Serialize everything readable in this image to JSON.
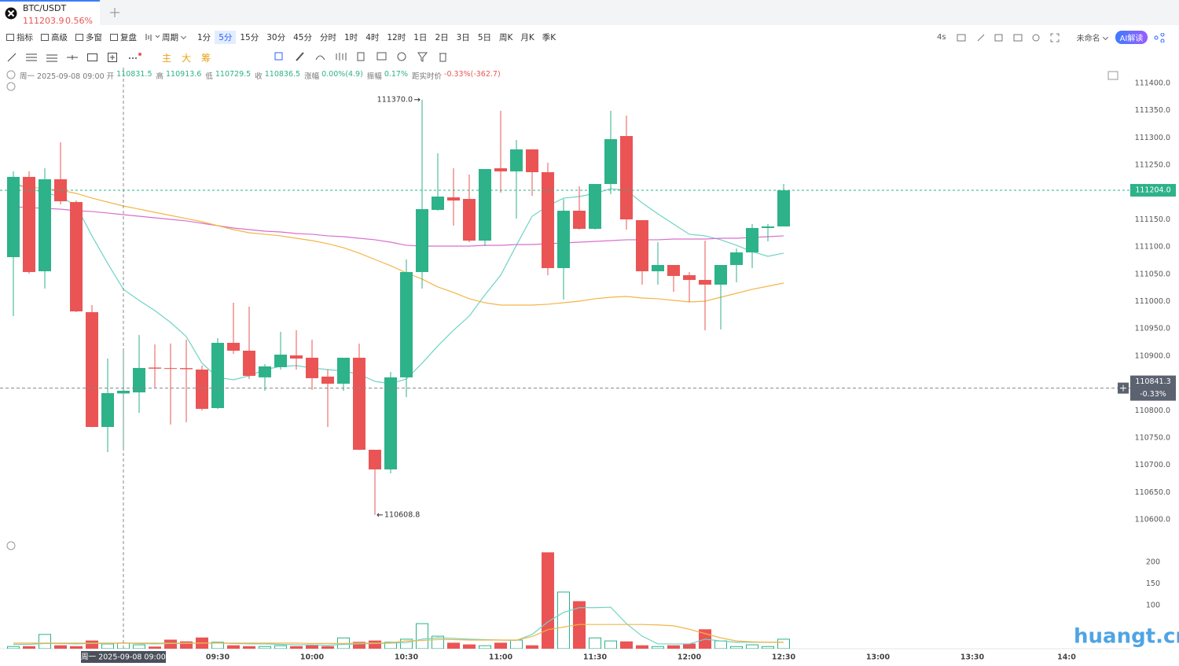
{
  "tab": {
    "symbol": "BTC/USDT",
    "price": "111203.9",
    "change": "0.56%"
  },
  "toolbar": {
    "menu": [
      "指标",
      "高级",
      "多窗",
      "复盘"
    ],
    "period_label": "周期",
    "periods": [
      "1分",
      "5分",
      "15分",
      "30分",
      "45分",
      "分时",
      "1时",
      "4时",
      "12时",
      "1日",
      "2日",
      "3日",
      "5日",
      "周K",
      "月K",
      "季K"
    ],
    "active": "5分",
    "refresh": "4s",
    "layout_name": "未命名",
    "ai": "AI解读"
  },
  "indicator_tabs": [
    "主",
    "大",
    "筹"
  ],
  "info": {
    "date": "周一 2025-09-08 09:00",
    "fields": [
      {
        "label": "开",
        "value": 110831.5
      },
      {
        "label": "高",
        "value": 110913.6
      },
      {
        "label": "低",
        "value": 110729.5
      },
      {
        "label": "收",
        "value": 110836.5
      },
      {
        "label": "涨幅",
        "value": "0.00%(4.9)"
      },
      {
        "label": "振幅",
        "value": "0.17%"
      },
      {
        "label": "距实时价",
        "value": "-0.33%(-362.7)"
      }
    ]
  },
  "watermark": "huangt.cn",
  "chart_data": {
    "type": "candlestick",
    "up_color": "#2db28a",
    "down_color": "#ea5455",
    "grid": false,
    "categories": [
      null,
      null,
      null,
      null,
      null,
      null,
      null,
      null,
      null,
      null,
      null,
      null,
      null,
      "09:30",
      null,
      null,
      null,
      null,
      null,
      "10:00",
      null,
      null,
      null,
      null,
      null,
      "10:30",
      null,
      null,
      null,
      null,
      null,
      "11:00",
      null,
      null,
      null,
      null,
      null,
      "11:30",
      null,
      null,
      null,
      null,
      null,
      "12:00",
      null,
      null,
      null,
      null,
      null,
      "12:30",
      null,
      null,
      null,
      null,
      null,
      "13:00",
      null,
      null,
      null,
      null,
      null,
      "13:30",
      null,
      null,
      null,
      null,
      null,
      "14:0"
    ],
    "open": [
      111081.4,
      111228.5,
      111055.5,
      111224.1,
      111182.4,
      110980.5,
      110770.1,
      110831.5,
      110833.5,
      110879,
      110878,
      110878,
      110875.3,
      110804.7,
      110924.3,
      110909.9,
      110861,
      110879.7,
      110901.3,
      110897,
      110862.4,
      110849.4,
      110897,
      110728.3,
      110692.3,
      110861,
      111054.1,
      111168,
      111191,
      111188.1,
      111111.7,
      111244.3,
      111238.6,
      111278.9,
      111237.1,
      111061.3,
      111166.5,
      111133.3,
      111215.5,
      111303.4,
      111149.2,
      111055.5,
      111067,
      111048.3,
      111039.6,
      111031,
      111067,
      111090.1,
      111134.8,
      111137.7,
      null,
      null,
      null,
      null,
      null,
      null,
      null,
      null,
      null,
      null,
      null,
      null,
      null,
      null,
      null,
      null,
      null,
      null
    ],
    "high": [
      111238.6,
      111238.6,
      111244.3,
      111291.9,
      111185.2,
      110993.5,
      110895.5,
      110913.6,
      110938.8,
      110921.5,
      110923,
      110930,
      110882.5,
      110933,
      110997.9,
      110990.6,
      110885.4,
      110944.5,
      110947.4,
      110930,
      110875.3,
      110897,
      110922.9,
      110728.3,
      110871,
      111077.1,
      111370,
      111271.7,
      111244.3,
      111232.8,
      111242.9,
      111349.6,
      111296.2,
      111278.9,
      111254.4,
      111188.1,
      111211.2,
      111215.5,
      111349.6,
      111340.9,
      111149.2,
      111108.8,
      111067,
      111054.1,
      111111.7,
      111067,
      111097.3,
      111142,
      111142,
      111215.5,
      null,
      null,
      null,
      null,
      null,
      null,
      null,
      null,
      null,
      null,
      null,
      null,
      null,
      null,
      null,
      null,
      null,
      null
    ],
    "low": [
      110973.3,
      111051.2,
      111023.8,
      111178,
      110980.5,
      110770,
      110724,
      110729.5,
      110796,
      110842.2,
      110774.4,
      110778.8,
      110800.4,
      110803,
      110904,
      110858,
      110836.4,
      110875.3,
      110875.3,
      110838,
      110770.1,
      110836.4,
      110728,
      110608.8,
      110685,
      110824.9,
      111023.8,
      111166.5,
      111139.1,
      111108.8,
      111101.6,
      111199.6,
      111152.1,
      111193.9,
      111048.3,
      111003.6,
      111131.9,
      111131.9,
      111196.8,
      111131.9,
      111031,
      111031,
      111018,
      110999.3,
      110947.4,
      110948.8,
      111035.3,
      111061.3,
      111110.3,
      111137.7,
      null,
      null,
      null,
      null,
      null,
      null,
      null,
      null,
      null,
      null,
      null,
      null,
      null,
      null,
      null,
      null,
      null,
      null
    ],
    "close": [
      111228.5,
      111054.1,
      111224.1,
      111183.8,
      110982,
      110770.1,
      110832.1,
      110836.5,
      110878.2,
      110877,
      110877,
      110876,
      110803.3,
      110924.3,
      110909.9,
      110863.8,
      110881.1,
      110902.7,
      110895.5,
      110859.5,
      110849.4,
      110897,
      110728.3,
      110692.3,
      110861,
      111054.1,
      111169.4,
      111192.4,
      111185.2,
      111111.7,
      111242.9,
      111238.6,
      111278.9,
      111237.1,
      111061.3,
      111166.5,
      111133.3,
      111215.5,
      111297.7,
      111150.6,
      111055.5,
      111067,
      111046.9,
      111039.6,
      111031,
      111067,
      111090.1,
      111134.8,
      111137.7,
      111203.9,
      null,
      null,
      null,
      null,
      null,
      null,
      null,
      null,
      null,
      null,
      null,
      null,
      null,
      null,
      null,
      null,
      null,
      null
    ],
    "series": [
      {
        "color": "#6fd3c4",
        "values": [
          111218.4,
          111206.9,
          111199.6,
          111192.4,
          111175.1,
          111120.4,
          111069.9,
          111022.4,
          111002.2,
          110983.4,
          110961.8,
          110935.9,
          110886.9,
          110860.9,
          110856.6,
          110863.8,
          110875.3,
          110881.1,
          110882.5,
          110878.2,
          110875.3,
          110872.4,
          110866.7,
          110853.7,
          110849.4,
          110858,
          110886.9,
          110918.6,
          110947.4,
          110973.3,
          111012.3,
          111048.3,
          111103.1,
          111156.4,
          111175.1,
          111189.6,
          111192.4,
          111198.2,
          111206.9,
          111204,
          111180.9,
          111160.7,
          111142,
          111123.3,
          111120.4,
          111113.2,
          111103.1,
          111091.5,
          111082.9,
          111088.7,
          null,
          null,
          null,
          null,
          null,
          null,
          null,
          null,
          null,
          null,
          null,
          null,
          null,
          null,
          null,
          null,
          null,
          null
        ]
      },
      {
        "color": "#d86fcf",
        "values": [
          111173.7,
          111172.3,
          111170.8,
          111169.4,
          111166.5,
          111165.1,
          111162.2,
          111159.3,
          111156.4,
          111153.5,
          111150.6,
          111147.8,
          111143.4,
          111139.1,
          111134.8,
          111131.9,
          111129,
          111127.6,
          111124.7,
          111123.3,
          111120.4,
          111118.9,
          111116,
          111113.2,
          111108.8,
          111103.1,
          111101.6,
          111101.6,
          111101.6,
          111101.6,
          111103.1,
          111103.1,
          111104.5,
          111104.5,
          111106,
          111107.4,
          111108.8,
          111110.3,
          111111.7,
          111113.2,
          111113.2,
          111113.2,
          111114.6,
          111114.6,
          111114.6,
          111116,
          111116,
          111117.5,
          111118.9,
          111120.4,
          null,
          null,
          null,
          null,
          null,
          null,
          null,
          null,
          null,
          null,
          null,
          null,
          null,
          null,
          null,
          null,
          null,
          null
        ]
      },
      {
        "color": "#f3b548",
        "values": [
          111212.6,
          111209.7,
          111206.9,
          111204,
          111198.2,
          111189.6,
          111182.3,
          111175.1,
          111169.4,
          111163.6,
          111157.8,
          111152.1,
          111146.3,
          111139.1,
          111131.9,
          111126.1,
          111123.3,
          111120.4,
          111116,
          111111.7,
          111106,
          111098.7,
          111088.7,
          111077.1,
          111065.6,
          111052.6,
          111041.1,
          111026.7,
          111016.6,
          111005.1,
          110997.8,
          110993.5,
          110993.5,
          110993.5,
          110995,
          110997.8,
          111000.7,
          111005.1,
          111007.9,
          111009.4,
          111006.5,
          111005.1,
          111002.2,
          110999.3,
          111000.7,
          111007.9,
          111015.1,
          111022.4,
          111028.1,
          111033.9,
          null,
          null,
          null,
          null,
          null,
          null,
          null,
          null,
          null,
          null,
          null,
          null,
          null,
          null,
          null,
          null,
          null,
          null
        ]
      }
    ],
    "ylim": [
      110568.3,
      111428.8
    ],
    "yticks": [
      {
        "value": 110600,
        "label": "110600.0"
      },
      {
        "value": 110650,
        "label": "110650.0"
      },
      {
        "value": 110700,
        "label": "110700.0"
      },
      {
        "value": 110750,
        "label": "110750.0"
      },
      {
        "value": 110800,
        "label": "110800.0"
      },
      {
        "value": 110850,
        "label": "110850.0"
      },
      {
        "value": 110900,
        "label": "110900.0"
      },
      {
        "value": 110950,
        "label": "110950.0"
      },
      {
        "value": 111000,
        "label": "111000.0"
      },
      {
        "value": 111050,
        "label": "111050.0"
      },
      {
        "value": 111100,
        "label": "111100.0"
      },
      {
        "value": 111150,
        "label": "111150.0"
      },
      {
        "value": 111200,
        "label": "111200.0"
      },
      {
        "value": 111250,
        "label": "111250.0"
      },
      {
        "value": 111300,
        "label": "111300.0"
      },
      {
        "value": 111350,
        "label": "111350.0"
      },
      {
        "value": 111400,
        "label": "111400.0"
      }
    ],
    "last_price": {
      "value": 111204,
      "label": "111204.0"
    },
    "crosshair": {
      "value": 110841.3,
      "change": "-0.33%"
    },
    "annotations": [
      {
        "value": 111370,
        "label": "111370.0"
      },
      {
        "value": 110608.8,
        "label": "110608.8"
      }
    ],
    "volume": [
      5,
      5,
      33,
      7,
      5,
      18,
      11,
      13,
      9,
      4,
      20,
      16,
      25,
      15,
      7,
      5,
      5,
      7,
      5,
      7,
      5,
      25,
      15,
      18,
      15,
      22,
      58,
      29,
      13,
      9,
      7,
      13,
      20,
      7,
      222,
      131,
      109,
      25,
      18,
      16,
      7,
      5,
      7,
      11,
      44,
      18,
      5,
      9,
      5,
      22,
      null,
      null,
      null,
      null,
      null,
      null,
      null,
      null,
      null,
      null,
      null,
      null,
      null,
      null,
      null,
      null,
      null,
      null
    ],
    "volume_series": [
      {
        "color": "#6fd3c4",
        "values": [
          10,
          10,
          12,
          12,
          11,
          12,
          12,
          13,
          12,
          11,
          12,
          12,
          13,
          13,
          12,
          11,
          11,
          10,
          9,
          9,
          8,
          10,
          11,
          12,
          13,
          14,
          22,
          25,
          24,
          22,
          21,
          20,
          19,
          33,
          62,
          84,
          95,
          95,
          96,
          58,
          29,
          11,
          11,
          11,
          22,
          18,
          15,
          15,
          15,
          15,
          null,
          null,
          null,
          null,
          null,
          null,
          null,
          null,
          null,
          null,
          null,
          null,
          null,
          null,
          null,
          null,
          null,
          null
        ]
      },
      {
        "color": "#f3b548",
        "values": [
          13,
          13,
          13,
          13,
          13,
          13,
          13,
          13,
          13,
          13,
          13,
          13,
          13,
          13,
          13,
          13,
          13,
          13,
          13,
          12,
          12,
          12,
          13,
          13,
          14,
          18,
          19,
          21,
          21,
          20,
          20,
          20,
          20,
          28,
          44,
          50,
          56,
          56,
          56,
          56,
          56,
          55,
          53,
          45,
          35,
          25,
          18,
          16,
          15,
          15,
          null,
          null,
          null,
          null,
          null,
          null,
          null,
          null,
          null,
          null,
          null,
          null,
          null,
          null,
          null,
          null,
          null,
          null
        ]
      }
    ],
    "volume_ylim": [
      0,
      227.3
    ],
    "volume_yticks": [
      100,
      150,
      200
    ]
  }
}
